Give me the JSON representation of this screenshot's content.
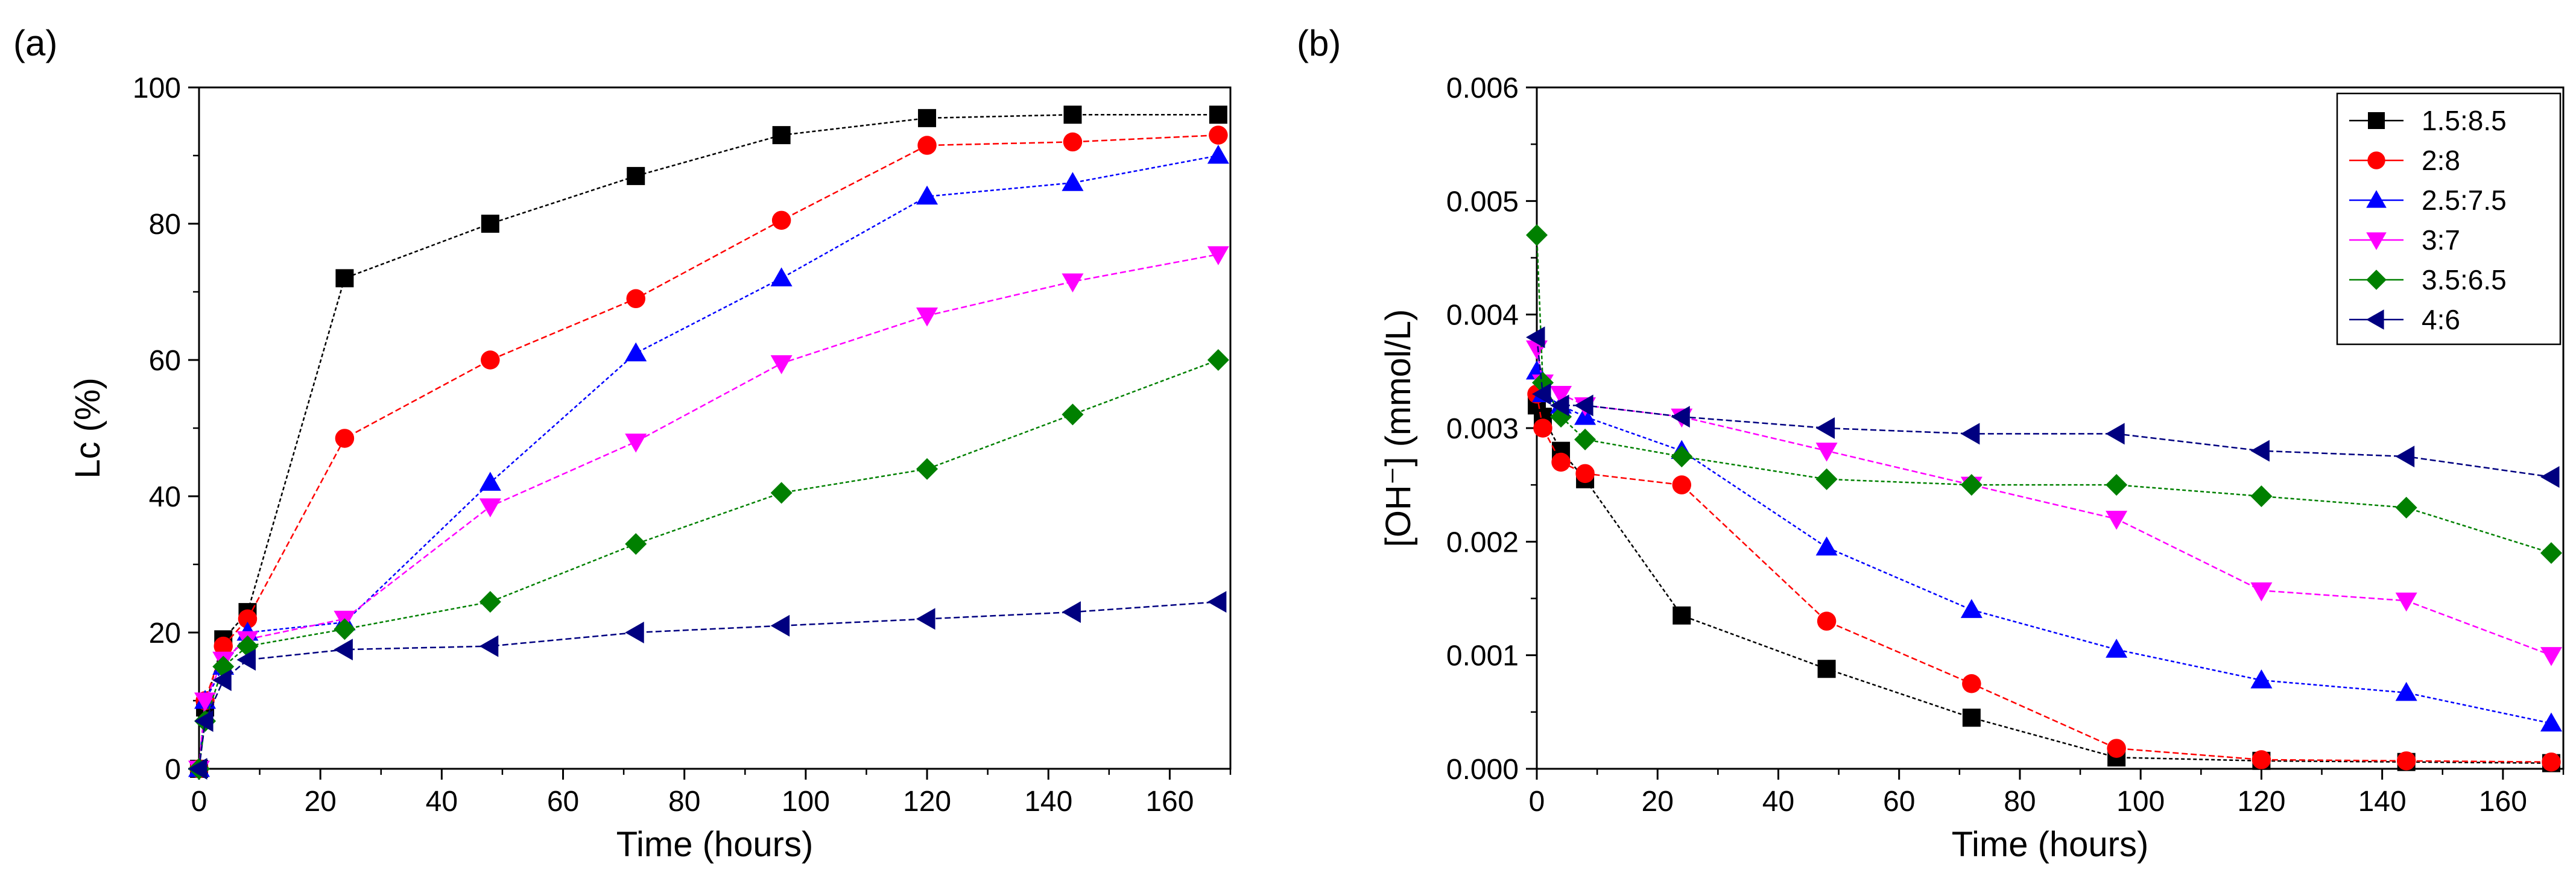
{
  "series_styles": [
    {
      "name": "1.5:8.5",
      "color": "#000000",
      "marker": "square"
    },
    {
      "name": "2:8",
      "color": "#ff0000",
      "marker": "circle"
    },
    {
      "name": "2.5:7.5",
      "color": "#0000ff",
      "marker": "triangle-up"
    },
    {
      "name": "3:7",
      "color": "#ff00ff",
      "marker": "triangle-down"
    },
    {
      "name": "3.5:6.5",
      "color": "#008000",
      "marker": "diamond"
    },
    {
      "name": "4:6",
      "color": "#000080",
      "marker": "triangle-left"
    }
  ],
  "chart_data": [
    {
      "panel": "(a)",
      "type": "line",
      "xlabel": "Time (hours)",
      "ylabel": "Lc (%)",
      "xlim": [
        0,
        170
      ],
      "ylim": [
        0,
        100
      ],
      "xticks": [
        0,
        20,
        40,
        60,
        80,
        100,
        120,
        140,
        160
      ],
      "yticks": [
        0,
        20,
        40,
        60,
        80,
        100
      ],
      "ytick_labels": [
        "0",
        "20",
        "40",
        "60",
        "80",
        "100"
      ],
      "legend": "none",
      "x": [
        0,
        1,
        4,
        8,
        24,
        48,
        72,
        96,
        120,
        144,
        168
      ],
      "series": [
        {
          "name": "1.5:8.5",
          "values": [
            0,
            9,
            19,
            23,
            72,
            80,
            87,
            93,
            95.5,
            96,
            96
          ]
        },
        {
          "name": "2:8",
          "values": [
            0,
            10,
            18,
            22,
            48.5,
            60,
            69,
            80.5,
            91.5,
            92,
            93
          ]
        },
        {
          "name": "2.5:7.5",
          "values": [
            0,
            10,
            15,
            20,
            21.5,
            42,
            61,
            72,
            84,
            86,
            90
          ]
        },
        {
          "name": "3:7",
          "values": [
            0,
            10,
            16,
            19,
            22,
            38.5,
            48,
            59.5,
            66.5,
            71.5,
            75.5
          ]
        },
        {
          "name": "3.5:6.5",
          "values": [
            0,
            7,
            15,
            18,
            20.5,
            24.5,
            33,
            40.5,
            44,
            52,
            60
          ]
        },
        {
          "name": "4:6",
          "values": [
            0,
            7,
            13,
            16,
            17.5,
            18,
            20,
            21,
            22,
            23,
            24.5
          ]
        }
      ]
    },
    {
      "panel": "(b)",
      "type": "line",
      "xlabel": "Time (hours)",
      "ylabel": "[OH⁻] (mmol/L)",
      "xlim": [
        0,
        170
      ],
      "ylim": [
        0,
        0.006
      ],
      "xticks": [
        0,
        20,
        40,
        60,
        80,
        100,
        120,
        140,
        160
      ],
      "yticks": [
        0,
        0.001,
        0.002,
        0.003,
        0.004,
        0.005,
        0.006
      ],
      "ytick_labels": [
        "0.000",
        "0.001",
        "0.002",
        "0.003",
        "0.004",
        "0.005",
        "0.006"
      ],
      "legend": "top-right",
      "x": [
        0,
        1,
        4,
        8,
        24,
        48,
        72,
        96,
        120,
        144,
        168
      ],
      "series": [
        {
          "name": "1.5:8.5",
          "values": [
            0.0032,
            0.0031,
            0.0028,
            0.00255,
            0.00135,
            0.00088,
            0.00045,
            0.0001,
            7e-05,
            6e-05,
            5e-05
          ]
        },
        {
          "name": "2:8",
          "values": [
            0.0033,
            0.003,
            0.0027,
            0.0026,
            0.0025,
            0.0013,
            0.00075,
            0.00018,
            8e-05,
            7e-05,
            6e-05
          ]
        },
        {
          "name": "2.5:7.5",
          "values": [
            0.0035,
            0.0033,
            0.0032,
            0.0031,
            0.0028,
            0.00195,
            0.0014,
            0.00105,
            0.00078,
            0.00067,
            0.0004
          ]
        },
        {
          "name": "3:7",
          "values": [
            0.0037,
            0.0034,
            0.0033,
            0.0032,
            0.0031,
            0.0028,
            0.0025,
            0.0022,
            0.00157,
            0.00148,
            0.001
          ]
        },
        {
          "name": "3.5:6.5",
          "values": [
            0.0047,
            0.0034,
            0.0031,
            0.0029,
            0.00275,
            0.00255,
            0.0025,
            0.0025,
            0.0024,
            0.0023,
            0.0019
          ]
        },
        {
          "name": "4:6",
          "values": [
            0.0038,
            0.0033,
            0.0032,
            0.0032,
            0.0031,
            0.003,
            0.00295,
            0.00295,
            0.0028,
            0.00275,
            0.00257
          ]
        }
      ]
    }
  ]
}
